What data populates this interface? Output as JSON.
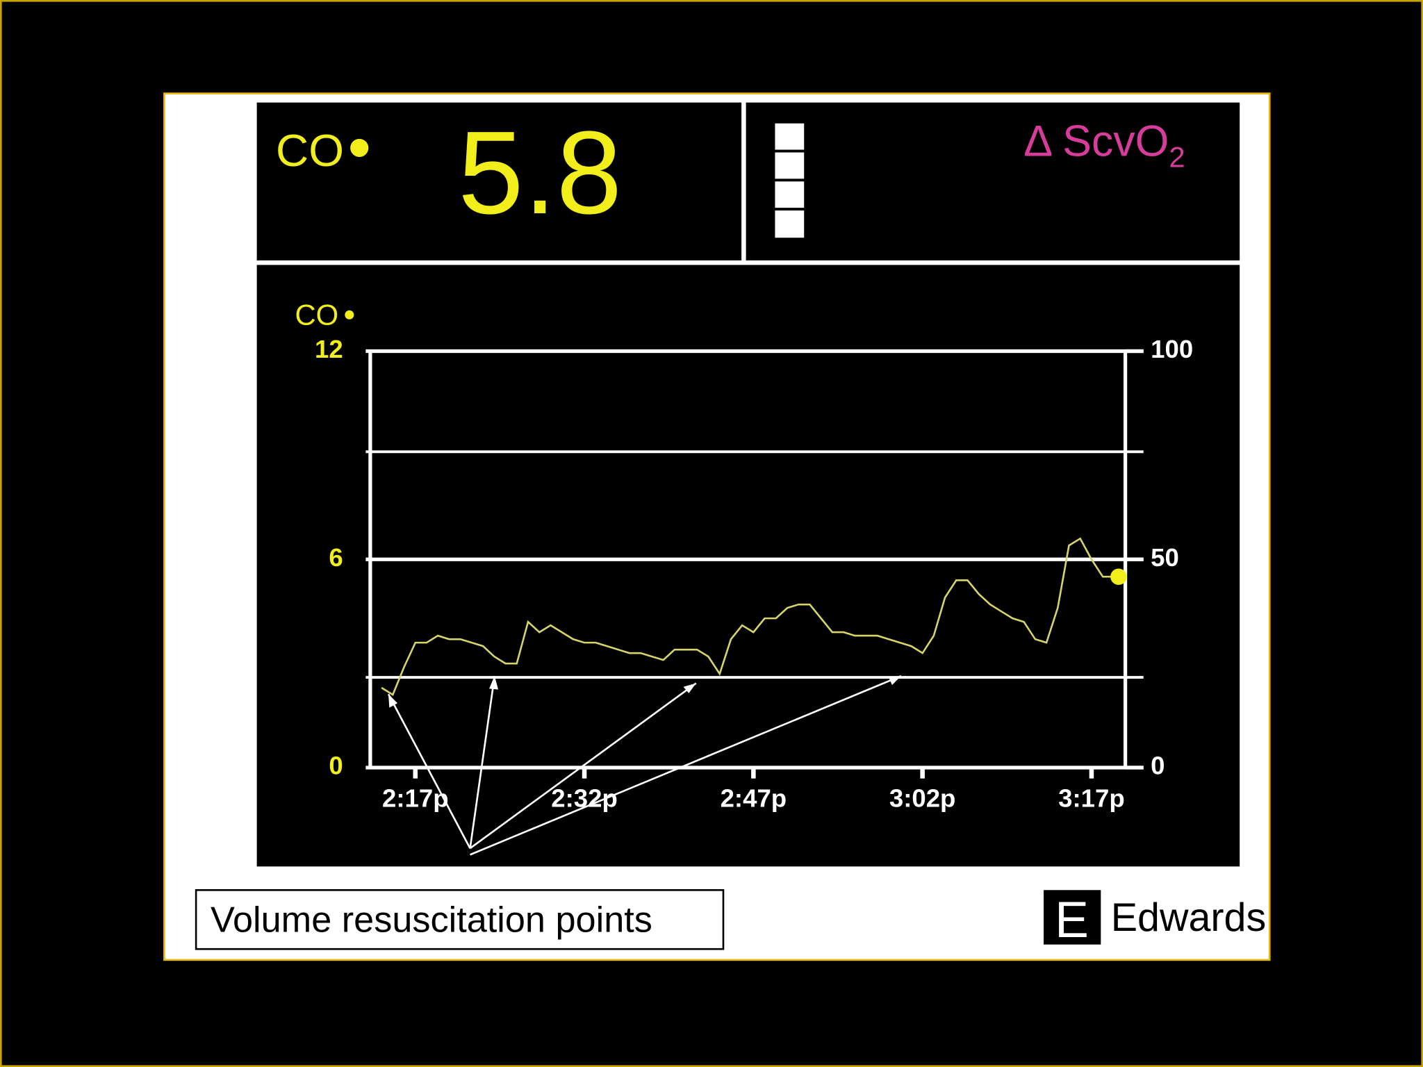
{
  "monitor": {
    "parameter": "CO",
    "value": 5.8,
    "delta_label": {
      "text": "Δ ScvO",
      "subscript": "2"
    }
  },
  "chart_data": {
    "type": "line",
    "y_label": "CO",
    "color": "#d6d46a",
    "marker_color": "#f2ee1c",
    "x": [
      "2:14p",
      "2:15p",
      "2:16p",
      "2:17p",
      "2:18p",
      "2:19p",
      "2:20p",
      "2:21p",
      "2:22p",
      "2:23p",
      "2:24p",
      "2:25p",
      "2:26p",
      "2:27p",
      "2:28p",
      "2:29p",
      "2:30p",
      "2:31p",
      "2:32p",
      "2:33p",
      "2:34p",
      "2:35p",
      "2:36p",
      "2:37p",
      "2:38p",
      "2:39p",
      "2:40p",
      "2:41p",
      "2:42p",
      "2:43p",
      "2:44p",
      "2:45p",
      "2:46p",
      "2:47p",
      "2:48p",
      "2:49p",
      "2:50p",
      "2:51p",
      "2:52p",
      "2:53p",
      "2:54p",
      "2:55p",
      "2:56p",
      "2:57p",
      "2:58p",
      "2:59p",
      "3:00p",
      "3:01p",
      "3:02p",
      "3:03p",
      "3:04p",
      "3:05p",
      "3:06p",
      "3:07p",
      "3:08p",
      "3:09p",
      "3:10p",
      "3:11p",
      "3:12p",
      "3:13p",
      "3:14p",
      "3:15p",
      "3:16p",
      "3:17p",
      "3:18p",
      "3:19p"
    ],
    "values": [
      2.3,
      2.1,
      2.9,
      3.6,
      3.6,
      3.8,
      3.7,
      3.7,
      3.6,
      3.5,
      3.2,
      3.0,
      3.0,
      4.2,
      3.9,
      4.1,
      3.9,
      3.7,
      3.6,
      3.6,
      3.5,
      3.4,
      3.3,
      3.3,
      3.2,
      3.1,
      3.4,
      3.4,
      3.4,
      3.2,
      2.7,
      3.7,
      4.1,
      3.9,
      4.3,
      4.3,
      4.6,
      4.7,
      4.7,
      4.3,
      3.9,
      3.9,
      3.8,
      3.8,
      3.8,
      3.7,
      3.6,
      3.5,
      3.3,
      3.8,
      4.9,
      5.4,
      5.4,
      5.0,
      4.7,
      4.5,
      4.3,
      4.2,
      3.7,
      3.6,
      4.6,
      6.4,
      6.6,
      6.0,
      5.5,
      5.5
    ],
    "xlim": [
      "2:13p",
      "3:20p"
    ],
    "xticks": [
      "2:17p",
      "2:32p",
      "2:47p",
      "3:02p",
      "3:17p"
    ],
    "ylim": [
      0,
      12
    ],
    "yticks": [
      0,
      6,
      12
    ],
    "y2lim": [
      0,
      100
    ],
    "y2ticks": [
      0,
      50,
      100
    ],
    "reference_lines": [
      9.1,
      2.6
    ],
    "annotation": "Volume resuscitation points"
  },
  "logo": "Edwards L"
}
